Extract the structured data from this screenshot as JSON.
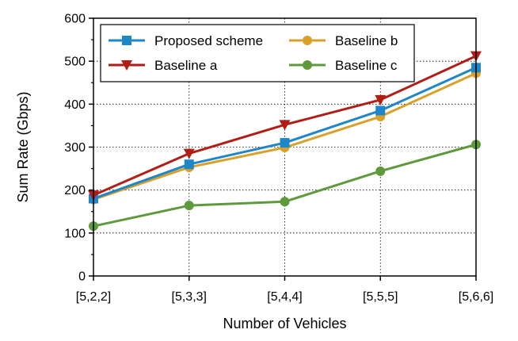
{
  "chart_data": {
    "type": "line",
    "title": "",
    "xlabel": "Number of  Vehicles",
    "ylabel": "Sum Rate (Gbps)",
    "categories": [
      "[5,2,2]",
      "[5,3,3]",
      "[5,4,4]",
      "[5,5,5]",
      "[5,6,6]"
    ],
    "ylim": [
      0,
      600
    ],
    "yticks": [
      0,
      100,
      200,
      300,
      400,
      500,
      600
    ],
    "grid": true,
    "legend_position": "top-left",
    "series": [
      {
        "name": "Proposed scheme",
        "values": [
          180,
          260,
          310,
          385,
          485
        ],
        "color": "#1f86c7",
        "marker": "square"
      },
      {
        "name": "Baseline a",
        "values": [
          188,
          285,
          352,
          410,
          512
        ],
        "color": "#b01e16",
        "marker": "triangle-down"
      },
      {
        "name": "Baseline b",
        "values": [
          178,
          253,
          299,
          371,
          472
        ],
        "color": "#d9a12a",
        "marker": "circle"
      },
      {
        "name": "Baseline c",
        "values": [
          116,
          164,
          173,
          244,
          306
        ],
        "color": "#5e9a3c",
        "marker": "circle"
      }
    ]
  }
}
